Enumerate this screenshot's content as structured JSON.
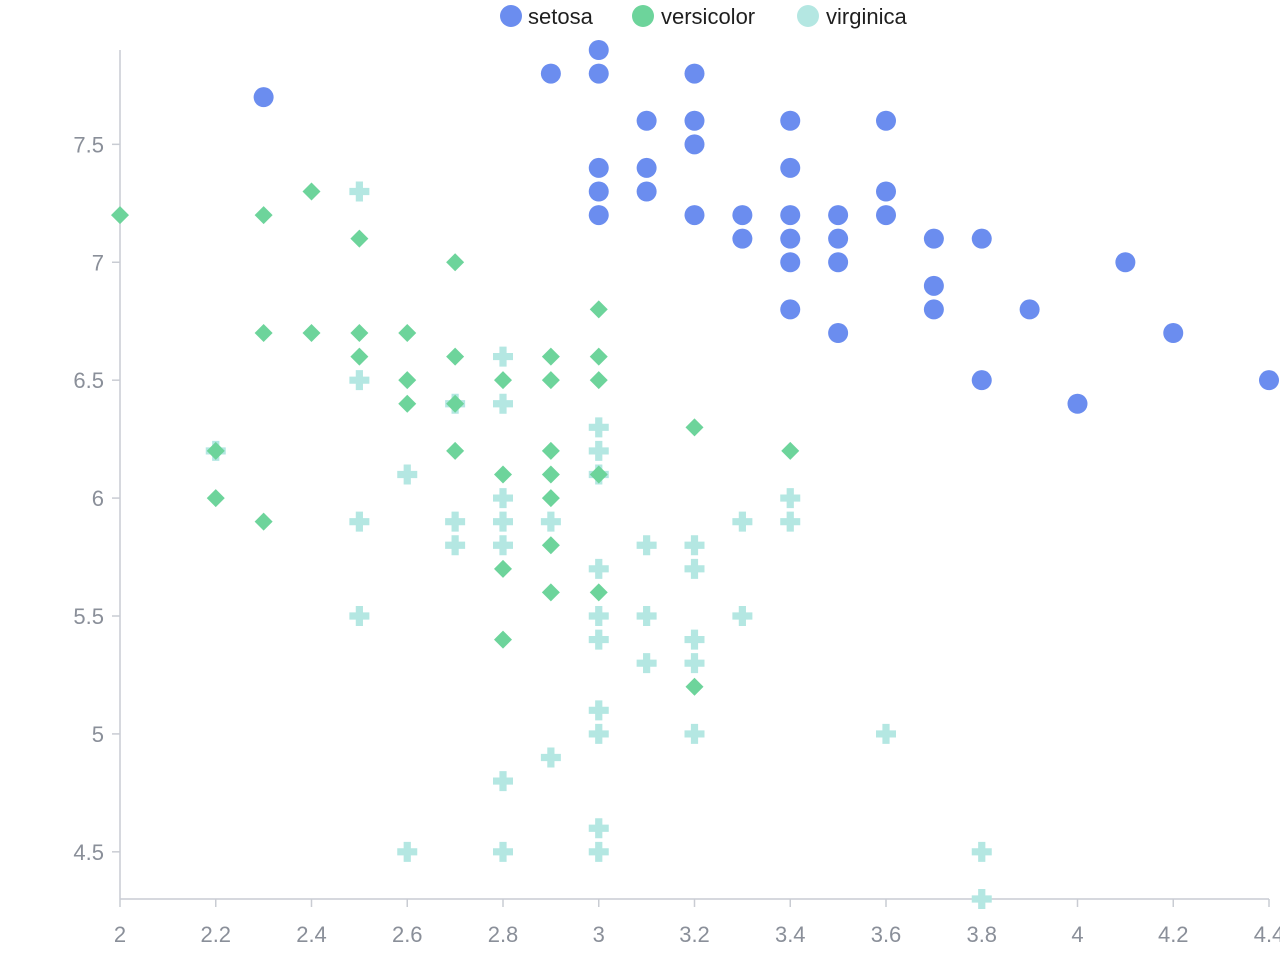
{
  "chart_data": {
    "type": "scatter",
    "title": "",
    "xlabel": "",
    "ylabel": "",
    "xlim": [
      2,
      4.4
    ],
    "ylim": [
      4.3,
      7.9
    ],
    "x_ticks": [
      "2",
      "2.2",
      "2.4",
      "2.6",
      "2.8",
      "3",
      "3.2",
      "3.4",
      "3.6",
      "3.8",
      "4",
      "4.2",
      "4.4"
    ],
    "y_ticks": [
      "4.5",
      "5",
      "5.5",
      "6",
      "6.5",
      "7",
      "7.5"
    ],
    "grid": false,
    "legend_position": "top-center",
    "series": [
      {
        "name": "setosa",
        "marker": "circle",
        "color": "#6b8def",
        "points": [
          [
            2.3,
            7.7
          ],
          [
            2.9,
            7.8
          ],
          [
            3.0,
            7.9
          ],
          [
            3.0,
            7.8
          ],
          [
            3.2,
            7.8
          ],
          [
            3.1,
            7.6
          ],
          [
            3.2,
            7.6
          ],
          [
            3.2,
            7.5
          ],
          [
            3.4,
            7.6
          ],
          [
            3.6,
            7.6
          ],
          [
            3.0,
            7.4
          ],
          [
            3.1,
            7.4
          ],
          [
            3.4,
            7.4
          ],
          [
            3.0,
            7.3
          ],
          [
            3.1,
            7.3
          ],
          [
            3.6,
            7.3
          ],
          [
            3.0,
            7.2
          ],
          [
            3.2,
            7.2
          ],
          [
            3.3,
            7.2
          ],
          [
            3.4,
            7.2
          ],
          [
            3.5,
            7.2
          ],
          [
            3.6,
            7.2
          ],
          [
            3.3,
            7.1
          ],
          [
            3.4,
            7.1
          ],
          [
            3.5,
            7.1
          ],
          [
            3.7,
            7.1
          ],
          [
            3.8,
            7.1
          ],
          [
            3.4,
            7.0
          ],
          [
            3.5,
            7.0
          ],
          [
            4.1,
            7.0
          ],
          [
            3.7,
            6.9
          ],
          [
            3.4,
            6.8
          ],
          [
            3.7,
            6.8
          ],
          [
            3.9,
            6.8
          ],
          [
            3.5,
            6.7
          ],
          [
            4.2,
            6.7
          ],
          [
            3.8,
            6.5
          ],
          [
            4.4,
            6.5
          ],
          [
            4.0,
            6.4
          ]
        ]
      },
      {
        "name": "versicolor",
        "marker": "diamond",
        "color": "#6dd49b",
        "points": [
          [
            2.0,
            7.2
          ],
          [
            2.3,
            7.2
          ],
          [
            2.4,
            7.3
          ],
          [
            2.5,
            7.1
          ],
          [
            2.7,
            7.0
          ],
          [
            3.0,
            6.8
          ],
          [
            2.3,
            6.7
          ],
          [
            2.4,
            6.7
          ],
          [
            2.5,
            6.7
          ],
          [
            2.6,
            6.7
          ],
          [
            2.5,
            6.6
          ],
          [
            2.7,
            6.6
          ],
          [
            2.9,
            6.6
          ],
          [
            3.0,
            6.6
          ],
          [
            2.6,
            6.5
          ],
          [
            2.8,
            6.5
          ],
          [
            2.9,
            6.5
          ],
          [
            3.0,
            6.5
          ],
          [
            2.6,
            6.4
          ],
          [
            2.7,
            6.4
          ],
          [
            3.2,
            6.3
          ],
          [
            2.2,
            6.2
          ],
          [
            2.7,
            6.2
          ],
          [
            2.9,
            6.2
          ],
          [
            3.4,
            6.2
          ],
          [
            2.8,
            6.1
          ],
          [
            2.9,
            6.1
          ],
          [
            3.0,
            6.1
          ],
          [
            2.2,
            6.0
          ],
          [
            2.9,
            6.0
          ],
          [
            2.3,
            5.9
          ],
          [
            2.9,
            5.8
          ],
          [
            2.8,
            5.7
          ],
          [
            2.9,
            5.6
          ],
          [
            3.0,
            5.6
          ],
          [
            2.8,
            5.4
          ],
          [
            3.2,
            5.2
          ]
        ]
      },
      {
        "name": "virginica",
        "marker": "cross",
        "color": "#b4e7e2",
        "points": [
          [
            2.5,
            7.3
          ],
          [
            2.8,
            6.6
          ],
          [
            2.5,
            6.5
          ],
          [
            2.7,
            6.4
          ],
          [
            2.8,
            6.4
          ],
          [
            3.0,
            6.3
          ],
          [
            2.2,
            6.2
          ],
          [
            3.0,
            6.2
          ],
          [
            2.6,
            6.1
          ],
          [
            3.0,
            6.1
          ],
          [
            2.8,
            6.0
          ],
          [
            3.4,
            6.0
          ],
          [
            2.5,
            5.9
          ],
          [
            2.7,
            5.9
          ],
          [
            2.8,
            5.9
          ],
          [
            2.9,
            5.9
          ],
          [
            3.3,
            5.9
          ],
          [
            3.4,
            5.9
          ],
          [
            2.7,
            5.8
          ],
          [
            2.8,
            5.8
          ],
          [
            3.1,
            5.8
          ],
          [
            3.2,
            5.8
          ],
          [
            3.0,
            5.7
          ],
          [
            3.2,
            5.7
          ],
          [
            2.5,
            5.5
          ],
          [
            3.0,
            5.5
          ],
          [
            3.1,
            5.5
          ],
          [
            3.3,
            5.5
          ],
          [
            3.0,
            5.4
          ],
          [
            3.2,
            5.4
          ],
          [
            3.1,
            5.3
          ],
          [
            3.2,
            5.3
          ],
          [
            3.0,
            5.1
          ],
          [
            3.0,
            5.0
          ],
          [
            3.2,
            5.0
          ],
          [
            3.6,
            5.0
          ],
          [
            2.9,
            4.9
          ],
          [
            2.8,
            4.8
          ],
          [
            3.0,
            4.6
          ],
          [
            2.6,
            4.5
          ],
          [
            2.8,
            4.5
          ],
          [
            3.0,
            4.5
          ],
          [
            3.8,
            4.5
          ],
          [
            3.8,
            4.3
          ]
        ]
      }
    ]
  }
}
